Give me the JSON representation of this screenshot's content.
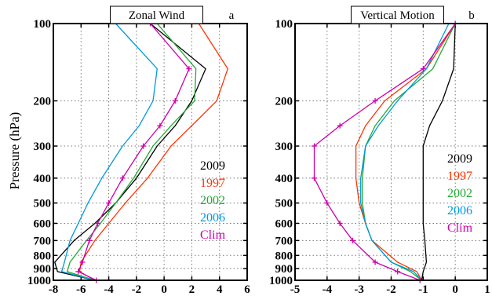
{
  "ylabel": "Pressure (hPa)",
  "colors": {
    "2009": "#000000",
    "1997": "#ff3300",
    "2002": "#22aa33",
    "2006": "#0099dd",
    "Clim": "#cc00aa"
  },
  "chart_data": [
    {
      "type": "line",
      "title": "Zonal Wind",
      "panel_label": "a",
      "xlabel": "",
      "ylabel": "Pressure (hPa)",
      "xlim": [
        -8,
        6
      ],
      "ylim": [
        1000,
        100
      ],
      "y_scale": "log",
      "grid": true,
      "x_ticks": [
        -8,
        -6,
        -4,
        -2,
        0,
        2,
        4,
        6
      ],
      "y_ticks": [
        100,
        200,
        300,
        400,
        500,
        600,
        700,
        800,
        900,
        1000
      ],
      "levels": [
        100,
        150,
        200,
        250,
        300,
        400,
        500,
        600,
        700,
        850,
        925,
        1000
      ],
      "legend_position": "lower-right",
      "series": [
        {
          "name": "2009",
          "key": "2009",
          "marker": false,
          "x": [
            -1,
            3.0,
            2.0,
            0.8,
            -0.5,
            -2.0,
            -3.5,
            -5.0,
            -6.5,
            -7.9,
            -7.7,
            -5.0
          ]
        },
        {
          "name": "1997",
          "key": "1997",
          "marker": false,
          "x": [
            2.5,
            4.6,
            3.8,
            2.0,
            0.5,
            -1.2,
            -2.8,
            -4.0,
            -5.0,
            -6.0,
            -6.1,
            -5.0
          ]
        },
        {
          "name": "2002",
          "key": "2002",
          "marker": false,
          "x": [
            -0.5,
            2.3,
            2.2,
            0.5,
            -0.8,
            -2.2,
            -3.5,
            -4.6,
            -5.6,
            -6.8,
            -7.0,
            -5.0
          ]
        },
        {
          "name": "2006",
          "key": "2006",
          "marker": false,
          "x": [
            -3.5,
            -0.5,
            -0.8,
            -1.8,
            -3.0,
            -4.5,
            -5.5,
            -6.2,
            -6.8,
            -7.2,
            -7.4,
            -5.0
          ]
        },
        {
          "name": "Clim",
          "key": "Clim",
          "marker": true,
          "x": [
            -1.0,
            1.8,
            0.8,
            -0.3,
            -1.5,
            -3.0,
            -4.0,
            -4.8,
            -5.4,
            -5.9,
            -6.2,
            -4.9
          ]
        }
      ]
    },
    {
      "type": "line",
      "title": "Vertical Motion",
      "panel_label": "b",
      "xlabel": "",
      "ylabel": "",
      "xlim": [
        -5,
        1
      ],
      "ylim": [
        1000,
        100
      ],
      "y_scale": "log",
      "grid": true,
      "x_ticks": [
        -5,
        -4,
        -3,
        -2,
        -1,
        0,
        1
      ],
      "y_ticks": [
        100,
        200,
        300,
        400,
        500,
        600,
        700,
        800,
        900,
        1000
      ],
      "levels": [
        100,
        150,
        200,
        250,
        300,
        400,
        500,
        600,
        700,
        850,
        925,
        1000
      ],
      "legend_position": "lower-right",
      "series": [
        {
          "name": "2009",
          "key": "2009",
          "marker": false,
          "x": [
            0.0,
            -0.05,
            -0.4,
            -0.8,
            -1.0,
            -1.0,
            -1.0,
            -1.0,
            -0.95,
            -0.9,
            -1.0,
            -1.05
          ]
        },
        {
          "name": "1997",
          "key": "1997",
          "marker": false,
          "x": [
            0.0,
            -0.9,
            -2.2,
            -2.8,
            -3.1,
            -3.1,
            -3.0,
            -2.8,
            -2.6,
            -1.8,
            -1.2,
            -1.05
          ]
        },
        {
          "name": "2002",
          "key": "2002",
          "marker": false,
          "x": [
            0.0,
            -0.7,
            -1.9,
            -2.5,
            -2.8,
            -2.9,
            -2.9,
            -2.8,
            -2.6,
            -2.0,
            -1.4,
            -1.05
          ]
        },
        {
          "name": "2006",
          "key": "2006",
          "marker": false,
          "x": [
            -0.2,
            -0.9,
            -1.8,
            -2.4,
            -2.8,
            -2.95,
            -2.95,
            -2.8,
            -2.6,
            -2.0,
            -1.3,
            -1.05
          ]
        },
        {
          "name": "Clim",
          "key": "Clim",
          "marker": true,
          "x": [
            0.0,
            -1.0,
            -2.5,
            -3.6,
            -4.4,
            -4.4,
            -4.0,
            -3.6,
            -3.2,
            -2.5,
            -1.8,
            -1.1
          ]
        }
      ]
    }
  ]
}
